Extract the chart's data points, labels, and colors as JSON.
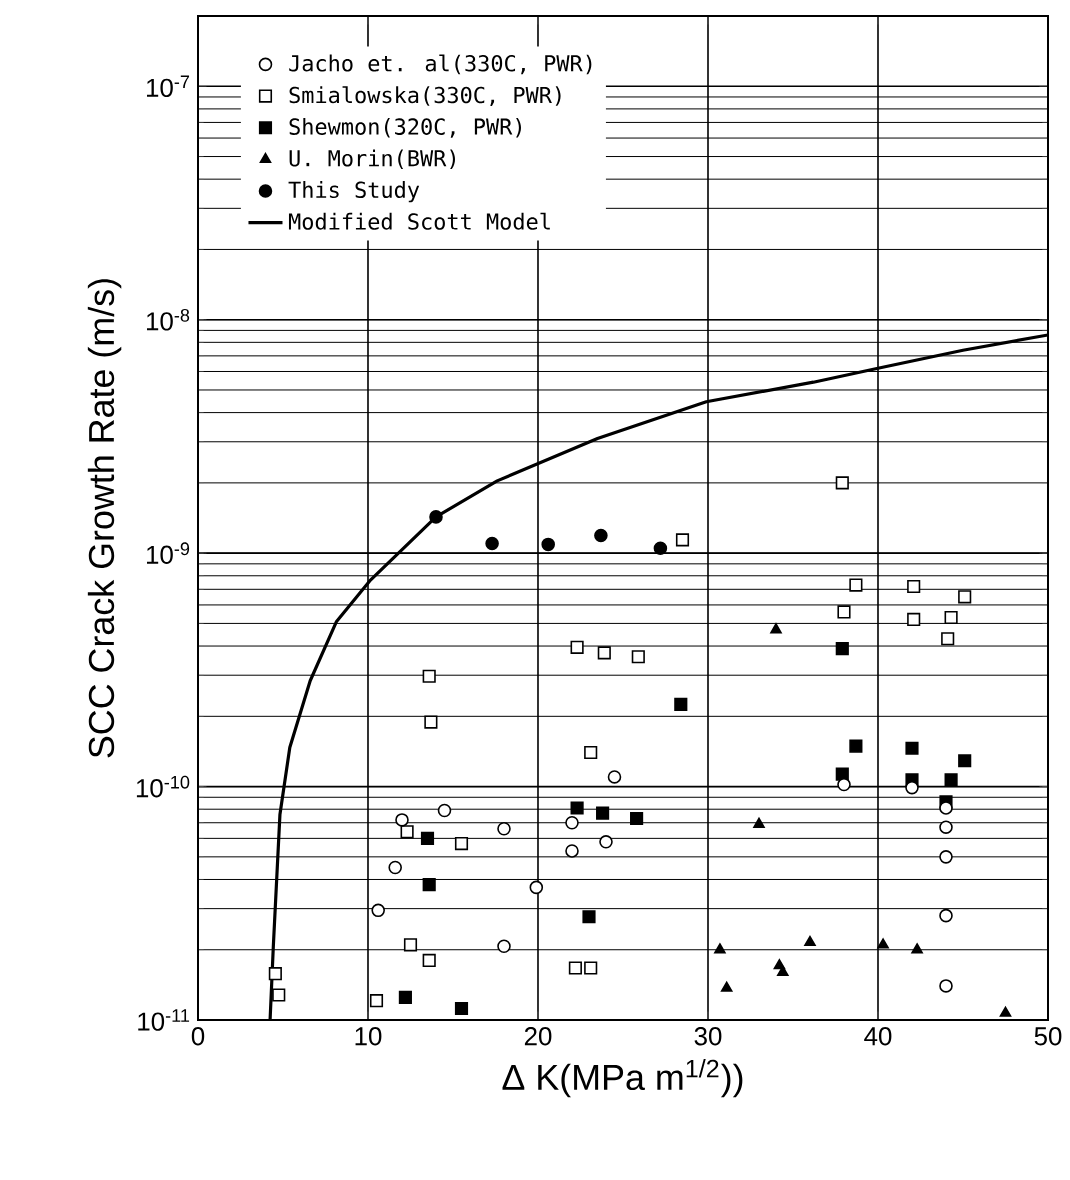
{
  "chart_data": {
    "type": "scatter",
    "xlabel": "Δ K(MPa m$^{1/2}$))",
    "ylabel": "SCC Crack Growth Rate (m/s)",
    "xlim": [
      0,
      50
    ],
    "xticks": [
      0,
      10,
      20,
      30,
      40,
      50
    ],
    "ylim": [
      1e-11,
      2e-07
    ],
    "yticks": [
      {
        "value": 1e-11,
        "label": "10$^{-11}$"
      },
      {
        "value": 1e-10,
        "label": "10$^{-10}$"
      },
      {
        "value": 1e-09,
        "label": "10$^{-9}$"
      },
      {
        "value": 1e-08,
        "label": "10$^{-8}$"
      },
      {
        "value": 1e-07,
        "label": "10$^{-7}$"
      }
    ],
    "log": "y",
    "grid": true,
    "legend": "top left",
    "series": [
      {
        "name": "Jacho et. al(330C, PWR)",
        "color": "#ffffff",
        "marker": "circle",
        "x": [
          12.0,
          14.5,
          18.0,
          22.0,
          24.0,
          22.0,
          24.5,
          11.6,
          19.9,
          10.6,
          18.0,
          38.0,
          42.0,
          44.0,
          44.0,
          44.0,
          44.0,
          44.0
        ],
        "values": [
          7.2e-11,
          7.9e-11,
          6.6e-11,
          7e-11,
          5.8e-11,
          5.3e-11,
          1.1e-10,
          4.5e-11,
          3.7e-11,
          2.95e-11,
          2.07e-11,
          1.02e-10,
          9.9e-11,
          8.1e-11,
          6.7e-11,
          5e-11,
          2.8e-11,
          1.4e-11
        ]
      },
      {
        "name": "Smialowska(330C, PWR)",
        "color": "#ffffff",
        "marker": "square",
        "x": [
          4.55,
          4.75,
          10.5,
          13.6,
          13.7,
          12.3,
          15.5,
          12.5,
          13.6,
          22.2,
          23.1,
          22.3,
          23.9,
          23.1,
          25.9,
          28.5,
          37.9,
          38.7,
          38.0,
          42.1,
          42.1,
          44.3,
          45.1,
          44.1
        ],
        "values": [
          1.58e-11,
          1.28e-11,
          1.21e-11,
          2.97e-10,
          1.89e-10,
          6.4e-11,
          5.7e-11,
          2.1e-11,
          1.8e-11,
          1.67e-11,
          1.67e-11,
          3.95e-10,
          3.74e-10,
          1.4e-10,
          3.6e-10,
          1.14e-09,
          2e-09,
          7.3e-10,
          5.6e-10,
          7.2e-10,
          5.2e-10,
          5.3e-10,
          6.5e-10,
          4.3e-10
        ]
      },
      {
        "name": "Shewmon(320C, PWR)",
        "color": "#000000",
        "marker": "square",
        "x": [
          13.5,
          13.6,
          12.2,
          15.5,
          22.3,
          23.8,
          23.0,
          25.8,
          28.4,
          37.9,
          38.7,
          37.9,
          42.0,
          42.0,
          45.1,
          44.3,
          44.0
        ],
        "values": [
          6e-11,
          3.8e-11,
          1.25e-11,
          1.12e-11,
          8.1e-11,
          7.7e-11,
          2.77e-11,
          7.3e-11,
          2.25e-10,
          3.9e-10,
          1.49e-10,
          1.13e-10,
          1.46e-10,
          1.07e-10,
          1.29e-10,
          1.07e-10,
          8.6e-11
        ]
      },
      {
        "name": "U. Morin(BWR)",
        "color": "#000000",
        "marker": "triangle",
        "x": [
          34.0,
          33.0,
          30.7,
          31.1,
          34.2,
          34.4,
          36.0,
          40.3,
          42.3,
          47.5
        ],
        "values": [
          4.7e-10,
          6.9e-11,
          2e-11,
          1.37e-11,
          1.71e-11,
          1.6e-11,
          2.15e-11,
          2.1e-11,
          2e-11,
          1.07e-11
        ]
      },
      {
        "name": "This Study",
        "color": "#000000",
        "marker": "circle",
        "x": [
          14.0,
          17.3,
          20.6,
          23.7,
          27.2
        ],
        "values": [
          1.43e-09,
          1.1e-09,
          1.09e-09,
          1.19e-09,
          1.05e-09
        ]
      },
      {
        "name": "Modified Scott Model",
        "type": "line",
        "color": "#000000",
        "marker": "none",
        "line_style": "solid",
        "x": [
          4.24,
          4.43,
          4.82,
          5.4,
          6.6,
          8.15,
          10.1,
          14.0,
          17.6,
          23.5,
          29.9,
          36.2,
          40.0,
          45.0,
          50.0
        ],
        "values": [
          1e-11,
          2.06e-11,
          7.6e-11,
          1.47e-10,
          2.84e-10,
          5.1e-10,
          7.6e-10,
          1.43e-09,
          2.04e-09,
          3.1e-09,
          4.45e-09,
          5.4e-09,
          6.2e-09,
          7.4e-09,
          8.6e-09
        ]
      }
    ]
  }
}
